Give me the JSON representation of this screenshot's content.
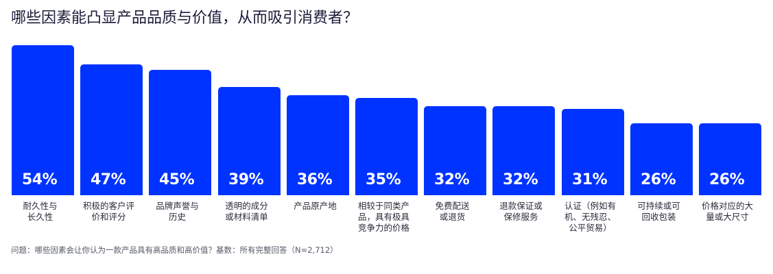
{
  "title": "哪些因素能凸显产品品质与价值，从而吸引消费者？",
  "footnote": "问题：哪些因素会让你认为一款产品具有高品质和高价值？基数：所有完整回答（N=2,712）",
  "colors": {
    "bar": "#0033ff",
    "bar_text": "#ffffff",
    "title": "#1b1b3a",
    "label": "#2b2b3b",
    "footnote": "#555a66"
  },
  "chart_data": {
    "type": "bar",
    "title": "哪些因素能凸显产品品质与价值，从而吸引消费者？",
    "xlabel": "",
    "ylabel": "",
    "ylim": [
      0,
      60
    ],
    "grid": false,
    "legend": "none",
    "unit": "%",
    "categories": [
      "耐久性与\n长久性",
      "积极的客户评\n价和评分",
      "品牌声誉与\n历史",
      "透明的成分\n或材料清单",
      "产品原产地",
      "相较于同类产\n品，具有极具\n竞争力的价格",
      "免费配送\n或退货",
      "退款保证或\n保修服务",
      "认证（例如有\n机、无残忍、\n公平贸易）",
      "可持续或可\n回收包装",
      "价格对应的大\n量或大尺寸"
    ],
    "values": [
      54,
      47,
      45,
      39,
      36,
      35,
      32,
      32,
      31,
      26,
      26
    ],
    "value_labels": [
      "54%",
      "47%",
      "45%",
      "39%",
      "36%",
      "35%",
      "32%",
      "32%",
      "31%",
      "26%",
      "26%"
    ],
    "annotation": "问题：哪些因素会让你认为一款产品具有高品质和高价值？基数：所有完整回答（N=2,712）"
  }
}
